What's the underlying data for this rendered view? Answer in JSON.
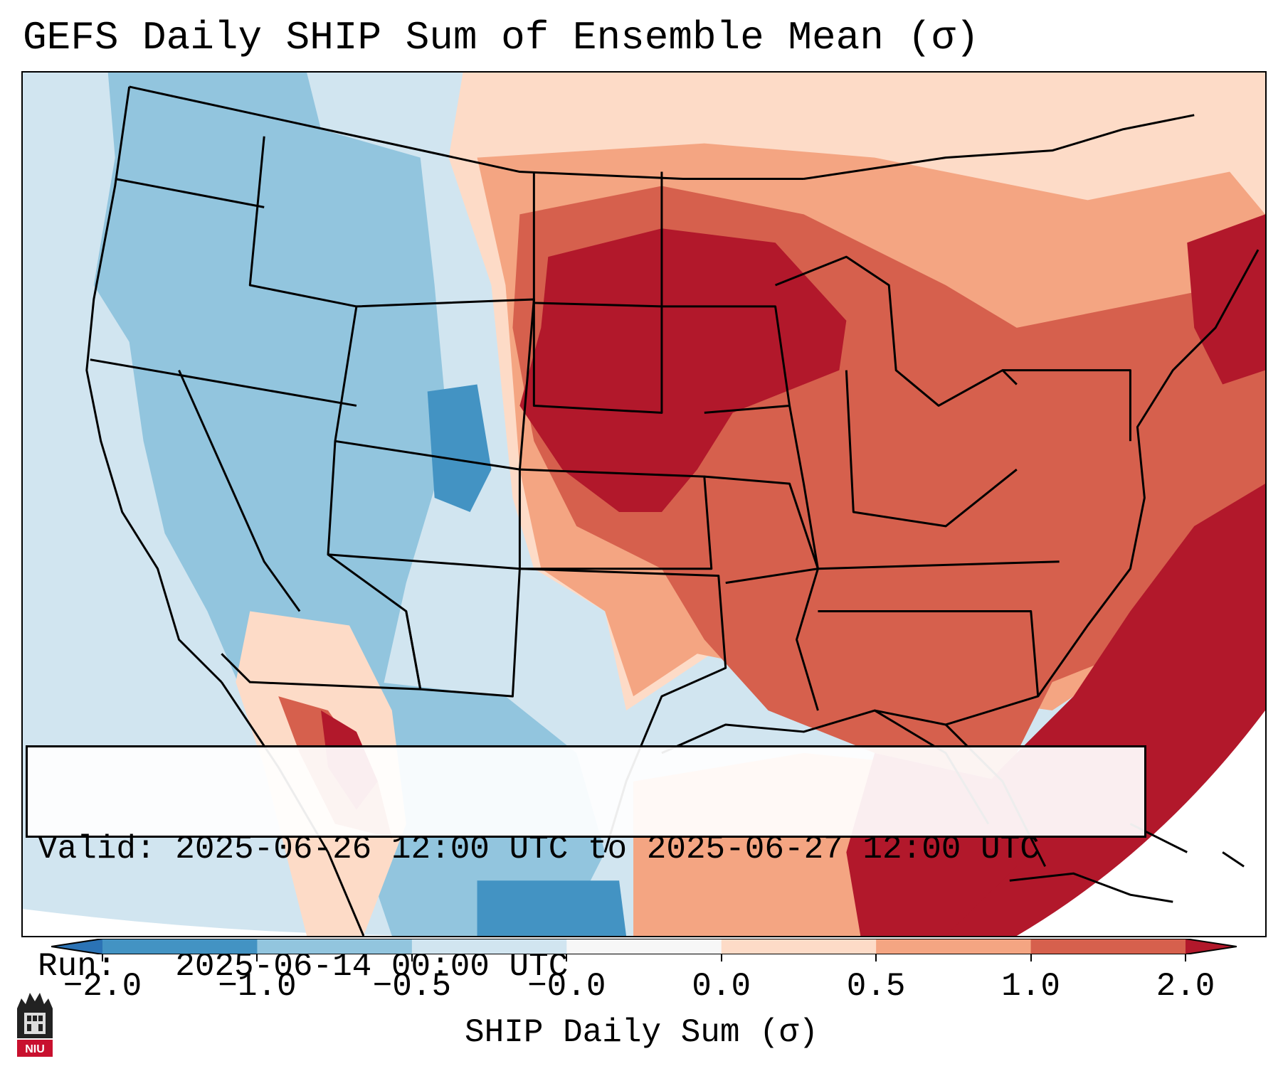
{
  "title": "GEFS Daily SHIP Sum of Ensemble Mean (σ)",
  "info": {
    "valid_line": "Valid: 2025-06-26 12:00 UTC to 2025-06-27 12:00 UTC",
    "run_line": "Run:   2025-06-14 00:00 UTC"
  },
  "colorbar": {
    "label": "SHIP Daily Sum (σ)",
    "ticks": [
      "−2.0",
      "−1.0",
      "−0.5",
      "−0.0",
      "0.0",
      "0.5",
      "1.0",
      "2.0"
    ],
    "colors": [
      "#2b73b5",
      "#4393c3",
      "#92c5de",
      "#d1e5f0",
      "#f7f7f7",
      "#fddbc7",
      "#f4a582",
      "#d6604d",
      "#b2182b"
    ]
  },
  "colors": {
    "strong_negative": "#4393c3",
    "negative": "#92c5de",
    "weak_negative": "#d1e5f0",
    "weak_positive": "#fddbc7",
    "positive": "#f4a582",
    "moderate_positive": "#d6604d",
    "strong_positive": "#b2182b",
    "out_of_domain": "#ffffff"
  },
  "logo": {
    "text": "NIU"
  }
}
